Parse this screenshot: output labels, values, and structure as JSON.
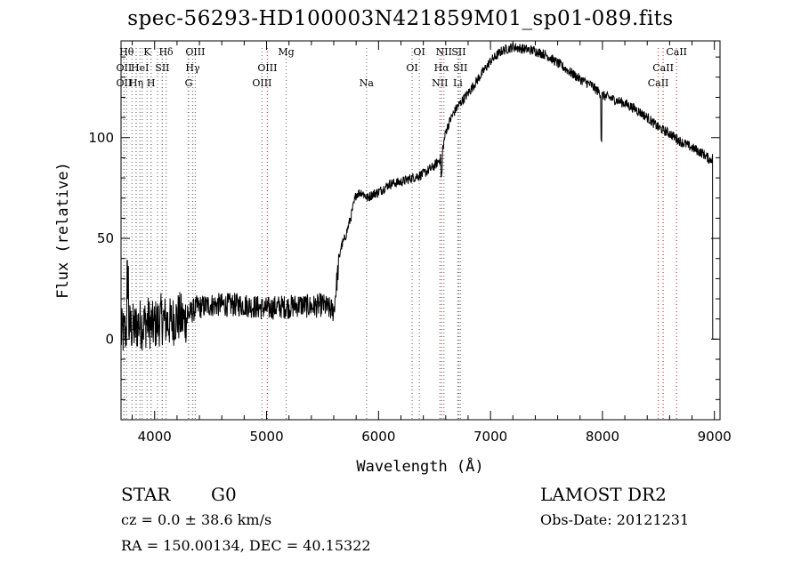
{
  "header": {
    "title": "spec-56293-HD100003N421859M01_sp01-089.fits"
  },
  "info": {
    "class_label": "STAR",
    "subclass": "G0",
    "survey": "LAMOST DR2",
    "cz": "cz = 0.0 ± 38.6 km/s",
    "obs_date": "Obs-Date: 20121231",
    "coords": "RA = 150.00134, DEC =  40.15322"
  },
  "chart_data": {
    "type": "line",
    "xlabel": "Wavelength (Å)",
    "ylabel": "Flux (relative)",
    "xlim": [
      3700,
      9050
    ],
    "ylim": [
      -40,
      148
    ],
    "xticks": [
      4000,
      5000,
      6000,
      7000,
      8000,
      9000
    ],
    "yticks": [
      0,
      50,
      100
    ],
    "grid": false,
    "series": [
      {
        "values_note": "",
        "x": [
          3700,
          3740,
          3780,
          3820,
          3860,
          3900,
          3940,
          3980,
          4020,
          4060,
          4100,
          4140,
          4180,
          4220,
          4260,
          4300,
          4340,
          4380,
          4420,
          4500,
          4600,
          4700,
          4800,
          4900,
          5000,
          5100,
          5200,
          5300,
          5400,
          5500,
          5560,
          5600,
          5630,
          5660,
          5700,
          5750,
          5800,
          5850,
          5900,
          5950,
          6000,
          6100,
          6200,
          6300,
          6400,
          6500,
          6560,
          6600,
          6650,
          6700,
          6800,
          6900,
          7000,
          7100,
          7200,
          7300,
          7400,
          7500,
          7600,
          7700,
          7800,
          7900,
          8000,
          8100,
          8200,
          8300,
          8400,
          8500,
          8600,
          8700,
          8800,
          8900,
          8960,
          8985
        ],
        "y": [
          2,
          4,
          6,
          5,
          8,
          7,
          9,
          6,
          8,
          10,
          9,
          8,
          10,
          11,
          9,
          12,
          14,
          16,
          16,
          17,
          17,
          17,
          17,
          16,
          15,
          16,
          16,
          17,
          16,
          17,
          15,
          14,
          30,
          45,
          50,
          60,
          72,
          73,
          70,
          72,
          73,
          77,
          78,
          80,
          82,
          86,
          90,
          103,
          110,
          115,
          122,
          130,
          138,
          143,
          145,
          144,
          143,
          141,
          137,
          133,
          129,
          126,
          121,
          119,
          117,
          114,
          110,
          105,
          102,
          98,
          95,
          92,
          89,
          90
        ]
      }
    ],
    "line_markers": [
      {
        "wl": 3750,
        "label": "Hθ",
        "row": 0,
        "style": "gray"
      },
      {
        "wl": 3798,
        "label": "",
        "row": -1,
        "style": "gray"
      },
      {
        "wl": 3835,
        "label": "",
        "row": -1,
        "style": "gray"
      },
      {
        "wl": 3889,
        "label": "",
        "row": -1,
        "style": "gray"
      },
      {
        "wl": 3933,
        "label": "K",
        "row": 0,
        "style": "gray"
      },
      {
        "wl": 3968,
        "label": "",
        "row": -1,
        "style": "gray"
      },
      {
        "wl": 4026,
        "label": "",
        "row": -1,
        "style": "gray"
      },
      {
        "wl": 4068,
        "label": "",
        "row": -1,
        "style": "gray"
      },
      {
        "wl": 4102,
        "label": "Hδ",
        "row": 0,
        "style": "gray"
      },
      {
        "wl": 4300,
        "label": "",
        "row": -1,
        "style": "gray"
      },
      {
        "wl": 4340,
        "label": "",
        "row": -1,
        "style": "gray"
      },
      {
        "wl": 4363,
        "label": "OIII",
        "row": 0,
        "style": "gray"
      },
      {
        "wl": 3727,
        "label": "OII",
        "row": 1,
        "style": "red"
      },
      {
        "wl": 3869,
        "label": "HeI",
        "row": 1,
        "style": "gray"
      },
      {
        "wl": 4069,
        "label": "SII",
        "row": 1,
        "style": "gray"
      },
      {
        "wl": 4340,
        "label": "Hγ",
        "row": 1,
        "style": "gray"
      },
      {
        "wl": 5007,
        "label": "OIII",
        "row": 1,
        "style": "red"
      },
      {
        "wl": 5175,
        "label": "Mg",
        "row": 0,
        "style": "gray"
      },
      {
        "wl": 3727,
        "label": "OII",
        "row": 2,
        "style": "gray"
      },
      {
        "wl": 3835,
        "label": "Hη",
        "row": 2,
        "style": "gray"
      },
      {
        "wl": 3968,
        "label": "H",
        "row": 2,
        "style": "gray"
      },
      {
        "wl": 4304,
        "label": "G",
        "row": 2,
        "style": "gray"
      },
      {
        "wl": 4959,
        "label": "OIII",
        "row": 2,
        "style": "gray"
      },
      {
        "wl": 5893,
        "label": "Na",
        "row": 2,
        "style": "gray"
      },
      {
        "wl": 6300,
        "label": "OI",
        "row": 1,
        "style": "gray"
      },
      {
        "wl": 6364,
        "label": "OI",
        "row": 0,
        "style": "gray"
      },
      {
        "wl": 6548,
        "label": "NII",
        "row": 2,
        "style": "gray"
      },
      {
        "wl": 6563,
        "label": "Hα",
        "row": 1,
        "style": "red"
      },
      {
        "wl": 6584,
        "label": "NII",
        "row": 0,
        "style": "gray"
      },
      {
        "wl": 6717,
        "label": "SII",
        "row": 0,
        "style": "gray"
      },
      {
        "wl": 6731,
        "label": "SII",
        "row": 1,
        "style": "gray"
      },
      {
        "wl": 6708,
        "label": "Li",
        "row": 2,
        "style": "gray"
      },
      {
        "wl": 8498,
        "label": "CaII",
        "row": 2,
        "style": "red"
      },
      {
        "wl": 8542,
        "label": "CaII",
        "row": 1,
        "style": "red"
      },
      {
        "wl": 8662,
        "label": "CaII",
        "row": 0,
        "style": "red"
      }
    ]
  }
}
